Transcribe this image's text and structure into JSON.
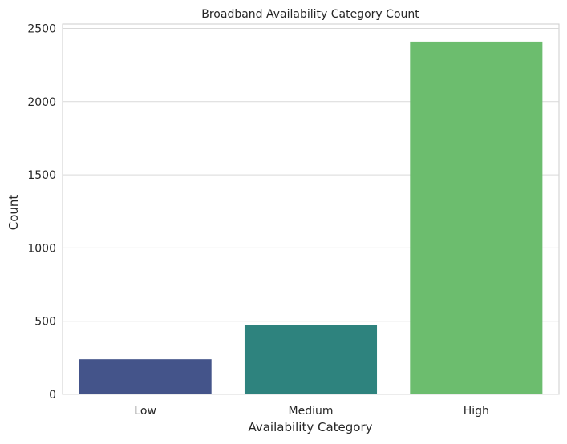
{
  "chart_data": {
    "type": "bar",
    "title": "Broadband Availability Category Count",
    "xlabel": "Availability Category",
    "ylabel": "Count",
    "categories": [
      "Low",
      "Medium",
      "High"
    ],
    "values": [
      240,
      475,
      2410
    ],
    "bar_colors": [
      "#44548a",
      "#2e837e",
      "#6cbd6e"
    ],
    "ylim": [
      0,
      2530
    ],
    "yticks": [
      0,
      500,
      1000,
      1500,
      2000,
      2500
    ],
    "ytick_labels": [
      "0",
      "500",
      "1000",
      "1500",
      "2000",
      "2500"
    ],
    "grid": "horizontal",
    "legend": "none"
  }
}
